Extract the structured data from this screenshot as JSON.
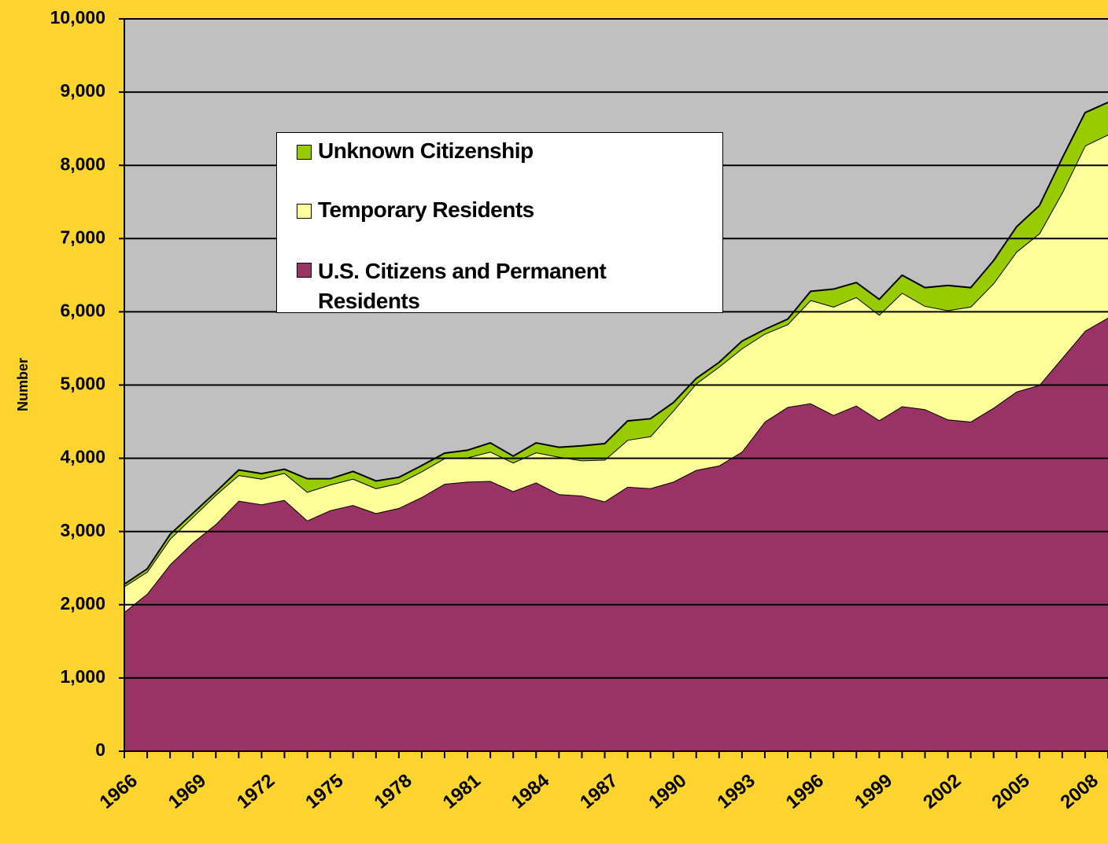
{
  "chart_data": {
    "type": "stacked_area",
    "y_label": "Number",
    "categories": [
      "1966",
      null,
      null,
      "1969",
      null,
      null,
      "1972",
      null,
      null,
      "1975",
      null,
      null,
      "1978",
      null,
      null,
      "1981",
      null,
      null,
      "1984",
      null,
      null,
      "1987",
      null,
      null,
      "1990",
      null,
      null,
      "1993",
      null,
      null,
      "1996",
      null,
      null,
      "1999",
      null,
      null,
      "2002",
      null,
      null,
      "2005",
      null,
      null,
      "2008",
      null
    ],
    "series": [
      {
        "name": "U.S. Citizens and Permanent Residents",
        "color": "#993366",
        "values": [
          1900,
          2150,
          2550,
          2850,
          3100,
          3420,
          3370,
          3430,
          3150,
          3290,
          3360,
          3250,
          3320,
          3470,
          3650,
          3680,
          3690,
          3550,
          3670,
          3510,
          3490,
          3410,
          3610,
          3590,
          3680,
          3840,
          3900,
          4090,
          4500,
          4700,
          4750,
          4590,
          4720,
          4520,
          4710,
          4670,
          4530,
          4500,
          4690,
          4910,
          5000,
          5370,
          5740,
          5920
        ]
      },
      {
        "name": "Temporary Residents",
        "color": "#ffff99",
        "values": [
          350,
          300,
          350,
          350,
          400,
          350,
          350,
          370,
          390,
          350,
          360,
          340,
          340,
          350,
          350,
          330,
          400,
          390,
          410,
          510,
          480,
          570,
          640,
          710,
          970,
          1180,
          1350,
          1410,
          1200,
          1130,
          1410,
          1480,
          1480,
          1440,
          1550,
          1410,
          1490,
          1570,
          1700,
          1910,
          2070,
          2260,
          2530,
          2500
        ]
      },
      {
        "name": "Unknown Citizenship",
        "color": "#99cc00",
        "values": [
          30,
          40,
          60,
          50,
          40,
          70,
          70,
          50,
          180,
          80,
          100,
          100,
          80,
          80,
          70,
          100,
          120,
          90,
          130,
          130,
          200,
          220,
          260,
          240,
          110,
          70,
          60,
          100,
          60,
          70,
          120,
          240,
          200,
          210,
          240,
          250,
          340,
          260,
          310,
          340,
          380,
          470,
          450,
          440
        ]
      }
    ],
    "ylim": [
      0,
      10000
    ],
    "yticks": [
      0,
      {
        "value": 1000,
        "label": "1,000"
      },
      {
        "value": 2000,
        "label": "2,000"
      },
      {
        "value": 3000,
        "label": "3,000"
      },
      {
        "value": 4000,
        "label": "4,000"
      },
      {
        "value": 5000,
        "label": "5,000"
      },
      {
        "value": 6000,
        "label": "6,000"
      },
      {
        "value": 7000,
        "label": "7,000"
      },
      {
        "value": 8000,
        "label": "8,000"
      },
      {
        "value": 9000,
        "label": "9,000"
      },
      {
        "value": 10000,
        "label": "10,000"
      }
    ],
    "grid": true
  }
}
